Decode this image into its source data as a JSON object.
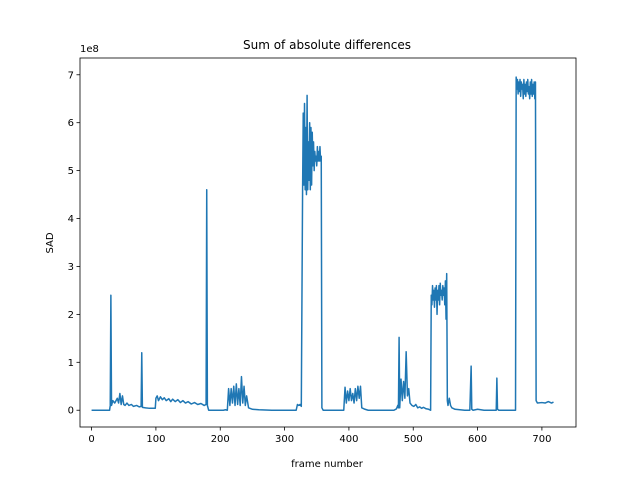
{
  "chart_data": {
    "type": "line",
    "title": "Sum of absolute differences",
    "xlabel": "frame number",
    "ylabel": "SAD",
    "y_offset_text": "1e8",
    "xlim": [
      -18,
      753
    ],
    "ylim": [
      -0.35,
      7.35
    ],
    "x_ticks": [
      0,
      100,
      200,
      300,
      400,
      500,
      600,
      700
    ],
    "x_tick_labels": [
      "0",
      "100",
      "200",
      "300",
      "400",
      "500",
      "600",
      "700"
    ],
    "y_ticks": [
      0,
      1,
      2,
      3,
      4,
      5,
      6,
      7
    ],
    "y_tick_labels": [
      "0",
      "1",
      "2",
      "3",
      "4",
      "5",
      "6",
      "7"
    ],
    "grid": false,
    "line_color": "#1f77b4",
    "series": [
      {
        "name": "",
        "y_unit": "1e8",
        "points": [
          [
            0,
            0.0
          ],
          [
            28,
            0.0
          ],
          [
            29,
            0.1
          ],
          [
            30,
            2.4
          ],
          [
            31,
            0.1
          ],
          [
            33,
            0.2
          ],
          [
            36,
            0.15
          ],
          [
            40,
            0.25
          ],
          [
            42,
            0.15
          ],
          [
            44,
            0.35
          ],
          [
            46,
            0.12
          ],
          [
            48,
            0.3
          ],
          [
            50,
            0.12
          ],
          [
            52,
            0.1
          ],
          [
            55,
            0.15
          ],
          [
            58,
            0.1
          ],
          [
            62,
            0.12
          ],
          [
            65,
            0.08
          ],
          [
            70,
            0.1
          ],
          [
            74,
            0.07
          ],
          [
            77,
            0.08
          ],
          [
            78,
            1.2
          ],
          [
            79,
            0.06
          ],
          [
            84,
            0.05
          ],
          [
            90,
            0.04
          ],
          [
            95,
            0.04
          ],
          [
            99,
            0.04
          ],
          [
            100,
            0.25
          ],
          [
            102,
            0.3
          ],
          [
            104,
            0.2
          ],
          [
            107,
            0.28
          ],
          [
            110,
            0.22
          ],
          [
            113,
            0.26
          ],
          [
            116,
            0.2
          ],
          [
            120,
            0.24
          ],
          [
            123,
            0.18
          ],
          [
            126,
            0.23
          ],
          [
            130,
            0.18
          ],
          [
            134,
            0.22
          ],
          [
            138,
            0.16
          ],
          [
            142,
            0.2
          ],
          [
            146,
            0.15
          ],
          [
            150,
            0.18
          ],
          [
            155,
            0.13
          ],
          [
            160,
            0.16
          ],
          [
            165,
            0.12
          ],
          [
            170,
            0.14
          ],
          [
            175,
            0.1
          ],
          [
            178,
            0.12
          ],
          [
            179,
            4.6
          ],
          [
            180,
            0.1
          ],
          [
            182,
            0.0
          ],
          [
            205,
            0.0
          ],
          [
            208,
            0.01
          ],
          [
            211,
            0.0
          ],
          [
            213,
            0.45
          ],
          [
            215,
            0.1
          ],
          [
            217,
            0.45
          ],
          [
            219,
            0.15
          ],
          [
            221,
            0.5
          ],
          [
            223,
            0.1
          ],
          [
            225,
            0.55
          ],
          [
            227,
            0.12
          ],
          [
            229,
            0.45
          ],
          [
            231,
            0.1
          ],
          [
            233,
            0.7
          ],
          [
            235,
            0.15
          ],
          [
            237,
            0.5
          ],
          [
            239,
            0.1
          ],
          [
            241,
            0.3
          ],
          [
            244,
            0.05
          ],
          [
            250,
            0.02
          ],
          [
            260,
            0.01
          ],
          [
            280,
            0.0
          ],
          [
            300,
            0.0
          ],
          [
            318,
            0.0
          ],
          [
            320,
            0.12
          ],
          [
            322,
            0.1
          ],
          [
            324,
            0.12
          ],
          [
            326,
            0.08
          ],
          [
            328,
            4.6
          ],
          [
            329,
            6.2
          ],
          [
            330,
            4.7
          ],
          [
            331,
            6.4
          ],
          [
            332,
            4.6
          ],
          [
            333,
            5.9
          ],
          [
            334,
            4.5
          ],
          [
            335,
            6.57
          ],
          [
            336,
            4.6
          ],
          [
            337,
            5.6
          ],
          [
            338,
            4.8
          ],
          [
            339,
            6.0
          ],
          [
            340,
            4.6
          ],
          [
            341,
            5.9
          ],
          [
            342,
            4.7
          ],
          [
            343,
            5.8
          ],
          [
            344,
            5.1
          ],
          [
            345,
            5.6
          ],
          [
            346,
            5.0
          ],
          [
            347,
            5.4
          ],
          [
            348,
            5.2
          ],
          [
            349,
            5.3
          ],
          [
            350,
            5.1
          ],
          [
            351,
            5.5
          ],
          [
            352,
            5.2
          ],
          [
            353,
            5.4
          ],
          [
            354,
            5.2
          ],
          [
            355,
            5.5
          ],
          [
            356,
            5.2
          ],
          [
            357,
            5.3
          ],
          [
            358,
            0.05
          ],
          [
            360,
            0.0
          ],
          [
            392,
            0.0
          ],
          [
            394,
            0.48
          ],
          [
            396,
            0.15
          ],
          [
            398,
            0.4
          ],
          [
            400,
            0.2
          ],
          [
            402,
            0.45
          ],
          [
            404,
            0.2
          ],
          [
            406,
            0.35
          ],
          [
            408,
            0.15
          ],
          [
            410,
            0.45
          ],
          [
            412,
            0.2
          ],
          [
            414,
            0.5
          ],
          [
            416,
            0.25
          ],
          [
            418,
            0.5
          ],
          [
            420,
            0.05
          ],
          [
            425,
            0.02
          ],
          [
            430,
            0.0
          ],
          [
            460,
            0.0
          ],
          [
            470,
            0.0
          ],
          [
            474,
            0.03
          ],
          [
            476,
            0.1
          ],
          [
            477,
            0.05
          ],
          [
            478,
            1.52
          ],
          [
            479,
            0.05
          ],
          [
            481,
            0.65
          ],
          [
            483,
            0.2
          ],
          [
            485,
            0.6
          ],
          [
            487,
            0.25
          ],
          [
            489,
            1.22
          ],
          [
            491,
            0.3
          ],
          [
            493,
            0.45
          ],
          [
            495,
            0.15
          ],
          [
            498,
            0.1
          ],
          [
            501,
            0.08
          ],
          [
            504,
            0.12
          ],
          [
            507,
            0.05
          ],
          [
            510,
            0.07
          ],
          [
            513,
            0.04
          ],
          [
            516,
            0.06
          ],
          [
            520,
            0.03
          ],
          [
            524,
            0.02
          ],
          [
            527,
            0.0
          ],
          [
            528,
            2.4
          ],
          [
            529,
            2.2
          ],
          [
            530,
            2.6
          ],
          [
            531,
            2.3
          ],
          [
            532,
            2.5
          ],
          [
            533,
            2.15
          ],
          [
            534,
            2.55
          ],
          [
            535,
            2.3
          ],
          [
            536,
            2.6
          ],
          [
            537,
            2.0
          ],
          [
            538,
            2.5
          ],
          [
            539,
            2.3
          ],
          [
            540,
            2.6
          ],
          [
            541,
            2.2
          ],
          [
            542,
            2.65
          ],
          [
            543,
            2.4
          ],
          [
            544,
            2.5
          ],
          [
            545,
            2.3
          ],
          [
            546,
            2.6
          ],
          [
            547,
            2.4
          ],
          [
            548,
            2.55
          ],
          [
            549,
            2.2
          ],
          [
            550,
            2.7
          ],
          [
            551,
            1.9
          ],
          [
            552,
            2.85
          ],
          [
            553,
            0.2
          ],
          [
            554,
            0.1
          ],
          [
            556,
            0.25
          ],
          [
            558,
            0.1
          ],
          [
            560,
            0.05
          ],
          [
            565,
            0.02
          ],
          [
            580,
            0.0
          ],
          [
            588,
            0.0
          ],
          [
            590,
            0.92
          ],
          [
            591,
            0.02
          ],
          [
            593,
            0.0
          ],
          [
            600,
            0.02
          ],
          [
            610,
            0.0
          ],
          [
            620,
            0.0
          ],
          [
            629,
            0.0
          ],
          [
            630,
            0.67
          ],
          [
            631,
            0.02
          ],
          [
            633,
            0.0
          ],
          [
            650,
            0.0
          ],
          [
            659,
            0.0
          ],
          [
            660,
            6.95
          ],
          [
            661,
            6.7
          ],
          [
            662,
            6.9
          ],
          [
            663,
            6.6
          ],
          [
            664,
            6.85
          ],
          [
            665,
            6.65
          ],
          [
            666,
            6.9
          ],
          [
            667,
            6.55
          ],
          [
            668,
            6.85
          ],
          [
            669,
            6.7
          ],
          [
            670,
            6.8
          ],
          [
            671,
            6.5
          ],
          [
            672,
            6.9
          ],
          [
            673,
            6.6
          ],
          [
            674,
            6.8
          ],
          [
            675,
            6.55
          ],
          [
            676,
            6.85
          ],
          [
            677,
            6.65
          ],
          [
            678,
            6.9
          ],
          [
            679,
            6.6
          ],
          [
            680,
            6.75
          ],
          [
            681,
            6.5
          ],
          [
            682,
            6.85
          ],
          [
            683,
            6.6
          ],
          [
            684,
            6.9
          ],
          [
            685,
            6.55
          ],
          [
            686,
            6.8
          ],
          [
            687,
            6.6
          ],
          [
            688,
            6.85
          ],
          [
            689,
            6.5
          ],
          [
            690,
            6.85
          ],
          [
            691,
            0.2
          ],
          [
            693,
            0.15
          ],
          [
            700,
            0.16
          ],
          [
            705,
            0.15
          ],
          [
            710,
            0.18
          ],
          [
            715,
            0.15
          ],
          [
            718,
            0.17
          ]
        ]
      }
    ]
  }
}
